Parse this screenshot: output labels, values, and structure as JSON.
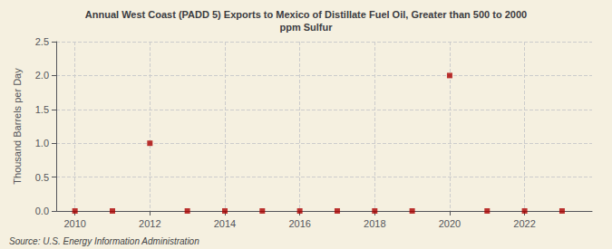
{
  "chart_data": {
    "type": "scatter",
    "title": "Annual West Coast (PADD 5) Exports to Mexico of Distillate Fuel Oil, Greater than 500 to 2000\nppm Sulfur",
    "ylabel": "Thousand Barrels per Day",
    "source": "Source: U.S. Energy Information Administration",
    "x": [
      2010,
      2011,
      2012,
      2013,
      2014,
      2015,
      2016,
      2017,
      2018,
      2019,
      2020,
      2021,
      2022,
      2023
    ],
    "values": [
      0.0,
      0.0,
      1.0,
      0.0,
      0.0,
      0.0,
      0.0,
      0.0,
      0.0,
      0.0,
      2.0,
      0.0,
      0.0,
      0.0
    ],
    "color": "#aa0000",
    "marker": "square",
    "xlim": [
      2009.5,
      2023.8
    ],
    "ylim": [
      0.0,
      2.5
    ],
    "xticks": [
      2010,
      2012,
      2014,
      2016,
      2018,
      2020,
      2022
    ],
    "yticks": [
      {
        "value": 0,
        "label": "0.0"
      },
      0.5,
      {
        "value": 1,
        "label": "1.0"
      },
      1.5,
      {
        "value": 2,
        "label": "2.0"
      },
      2.5
    ],
    "grid": true
  }
}
